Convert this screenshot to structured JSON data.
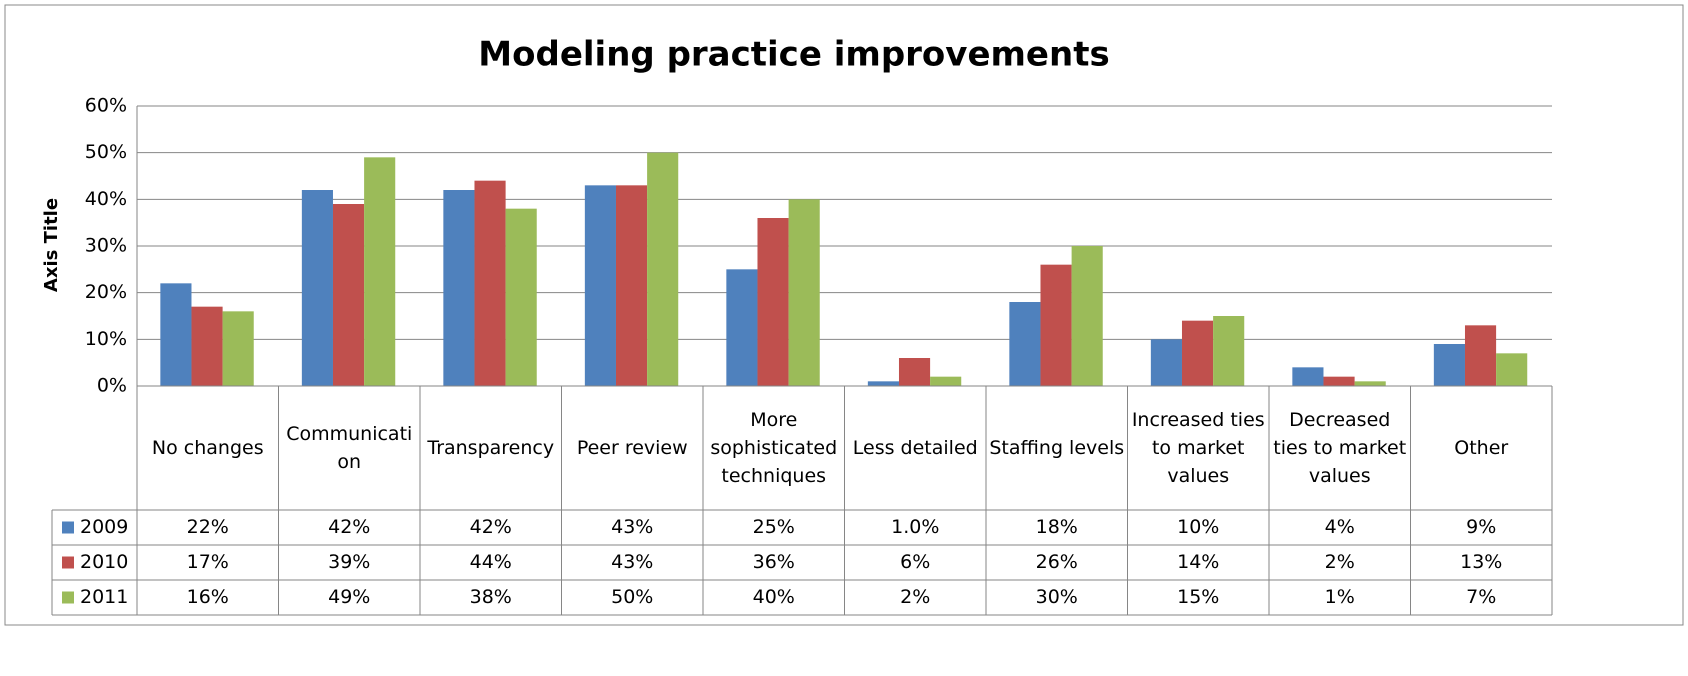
{
  "chart_data": {
    "type": "bar",
    "title": "Modeling practice improvements",
    "y_label": "Axis Title",
    "categories": [
      "No changes",
      "Communication",
      "Transparency",
      "Peer review",
      "More sophisticated techniques",
      "Less detailed",
      "Staffing levels",
      "Increased ties to market values",
      "Decreased ties to market values",
      "Other"
    ],
    "series": [
      {
        "name": "2009",
        "color": "#4f81bd",
        "values": [
          22,
          42,
          42,
          43,
          25,
          1,
          18,
          10,
          4,
          9
        ],
        "value_labels": [
          "22%",
          "42%",
          "42%",
          "43%",
          "25%",
          "1.0%",
          "18%",
          "10%",
          "4%",
          "9%"
        ]
      },
      {
        "name": "2010",
        "color": "#c0504d",
        "values": [
          17,
          39,
          44,
          43,
          36,
          6,
          26,
          14,
          2,
          13
        ],
        "value_labels": [
          "17%",
          "39%",
          "44%",
          "43%",
          "36%",
          "6%",
          "26%",
          "14%",
          "2%",
          "13%"
        ]
      },
      {
        "name": "2011",
        "color": "#9bbb59",
        "values": [
          16,
          49,
          38,
          50,
          40,
          2,
          30,
          15,
          1,
          7
        ],
        "value_labels": [
          "16%",
          "49%",
          "38%",
          "50%",
          "40%",
          "2%",
          "30%",
          "15%",
          "1%",
          "7%"
        ]
      }
    ],
    "ylim": [
      0,
      60
    ],
    "yticks": [
      {
        "value": 0,
        "label": "0%"
      },
      {
        "value": 10,
        "label": "10%"
      },
      {
        "value": 20,
        "label": "20%"
      },
      {
        "value": 30,
        "label": "30%"
      },
      {
        "value": 40,
        "label": "40%"
      },
      {
        "value": 50,
        "label": "50%"
      },
      {
        "value": 60,
        "label": "60%"
      }
    ],
    "grid": true
  }
}
